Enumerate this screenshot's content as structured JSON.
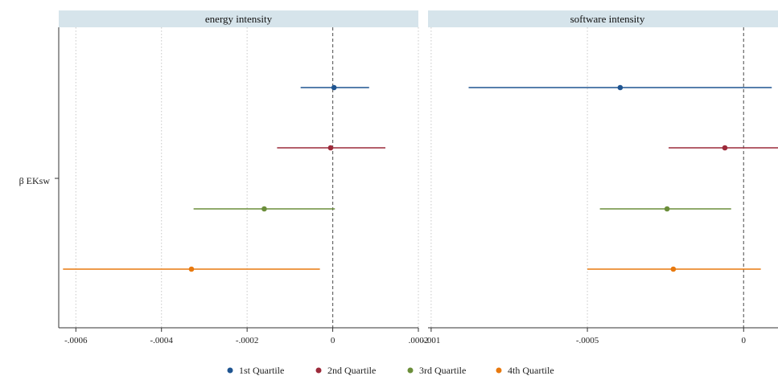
{
  "chart_data": [
    {
      "type": "coefficient-plot",
      "title": "energy intensity",
      "ylabel": "β EKsw",
      "xlim": [
        -0.00064,
        0.0002
      ],
      "xticks": [
        {
          "value": -0.0006,
          "label": "-.0006"
        },
        {
          "value": -0.0004,
          "label": "-.0004"
        },
        {
          "value": -0.0002,
          "label": "-.0002"
        },
        {
          "value": 0,
          "label": "0"
        },
        {
          "value": 0.0002,
          "label": ".0002"
        }
      ],
      "reference_line": 0,
      "grid": true,
      "series": [
        {
          "name": "1st Quartile",
          "color": "#1f5591",
          "estimate": 3e-06,
          "ci": [
            -7.5e-05,
            8.5e-05
          ]
        },
        {
          "name": "2nd Quartile",
          "color": "#9c2a3a",
          "estimate": -5e-06,
          "ci": [
            -0.00013,
            0.000123
          ]
        },
        {
          "name": "3rd Quartile",
          "color": "#6b8e3a",
          "estimate": -0.00016,
          "ci": [
            -0.000325,
            5e-06
          ]
        },
        {
          "name": "4th Quartile",
          "color": "#e8790e",
          "estimate": -0.00033,
          "ci": [
            -0.00063,
            -3e-05
          ]
        }
      ]
    },
    {
      "type": "coefficient-plot",
      "title": "software intensity",
      "ylabel": "β EKsw",
      "xlim": [
        -0.00101,
        0.00011
      ],
      "xticks": [
        {
          "value": -0.001,
          "label": "-.001"
        },
        {
          "value": -0.0005,
          "label": "-.0005"
        },
        {
          "value": 0,
          "label": "0"
        }
      ],
      "reference_line": 0,
      "grid": true,
      "series": [
        {
          "name": "1st Quartile",
          "color": "#1f5591",
          "estimate": -0.000395,
          "ci": [
            -0.00088,
            9e-05
          ]
        },
        {
          "name": "2nd Quartile",
          "color": "#9c2a3a",
          "estimate": -6e-05,
          "ci": [
            -0.00024,
            0.00011
          ]
        },
        {
          "name": "3rd Quartile",
          "color": "#6b8e3a",
          "estimate": -0.000245,
          "ci": [
            -0.00046,
            -4e-05
          ]
        },
        {
          "name": "4th Quartile",
          "color": "#e8790e",
          "estimate": -0.000225,
          "ci": [
            -0.0005,
            5.5e-05
          ]
        }
      ]
    }
  ],
  "legend": {
    "position": "bottom",
    "items": [
      {
        "label": "1st Quartile",
        "color": "#1f5591"
      },
      {
        "label": "2nd Quartile",
        "color": "#9c2a3a"
      },
      {
        "label": "3rd Quartile",
        "color": "#6b8e3a"
      },
      {
        "label": "4th Quartile",
        "color": "#e8790e"
      }
    ]
  },
  "colors": {
    "strip": "#d6e4eb",
    "axis": "#333333",
    "grid": "#c8c8c8",
    "reference": "#666666"
  }
}
